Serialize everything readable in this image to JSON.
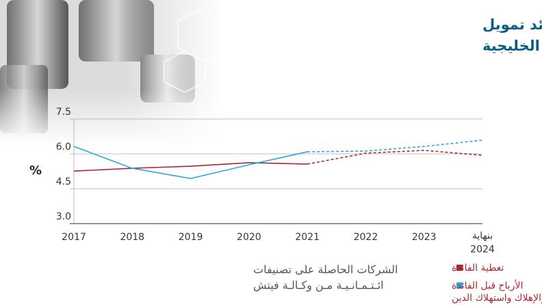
{
  "chart_data": {
    "type": "line",
    "title_lines": [
      "حركة تغطية فوائد تمويل",
      "الشركات الخليجية"
    ],
    "y_label": "%",
    "categories": [
      "2017",
      "2018",
      "2019",
      "2020",
      "2021",
      "2022",
      "2023",
      "بنهاية 2024"
    ],
    "series": [
      {
        "name": "تغطية الفائدة",
        "color": "#a8282f",
        "values": [
          5.26,
          5.38,
          5.47,
          5.62,
          5.56,
          6.03,
          6.15,
          5.94
        ]
      },
      {
        "name": "الأرباح قبل الفائدة والضرائب والإهلاك واستهلاك الدين",
        "color": "#29a9e0",
        "values": [
          6.32,
          5.38,
          4.94,
          5.53,
          6.09,
          6.12,
          6.32,
          6.59
        ]
      }
    ],
    "dashed_from": 4,
    "ylim": [
      3,
      7.5
    ],
    "yticks": [
      {
        "value": 3,
        "label": "3.0"
      },
      {
        "value": 4.5,
        "label": "4.5"
      },
      {
        "value": 6,
        "label": "6.0"
      },
      {
        "value": 7.5,
        "label": "7.5"
      }
    ],
    "grid": true,
    "note_lines": [
      "الشركات الحاصلة على تصنيفات",
      "ائـتـمـانـيـة مـن وكـالـة فيتش"
    ]
  }
}
